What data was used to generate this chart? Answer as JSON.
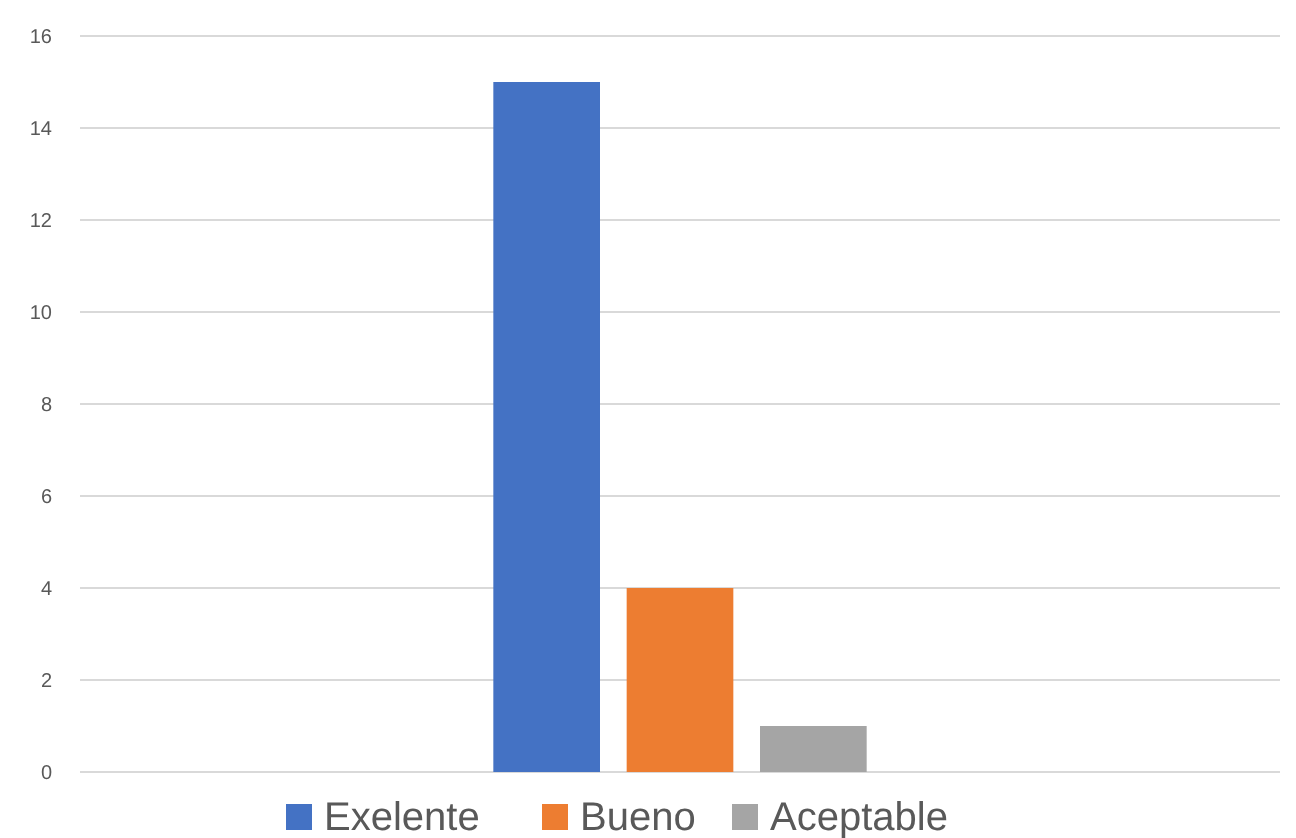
{
  "chart_data": {
    "type": "bar",
    "categories": [
      null
    ],
    "series": [
      {
        "name": "Exelente",
        "color": "#4472c4",
        "values": [
          15
        ]
      },
      {
        "name": "Bueno",
        "color": "#ed7d31",
        "values": [
          4
        ]
      },
      {
        "name": "Aceptable",
        "color": "#a5a5a5",
        "values": [
          1
        ]
      }
    ],
    "ylim": [
      0,
      16
    ],
    "yticks": [
      0,
      2,
      4,
      6,
      8,
      10,
      12,
      14,
      16
    ],
    "grid": "y",
    "legend": "bottom"
  }
}
